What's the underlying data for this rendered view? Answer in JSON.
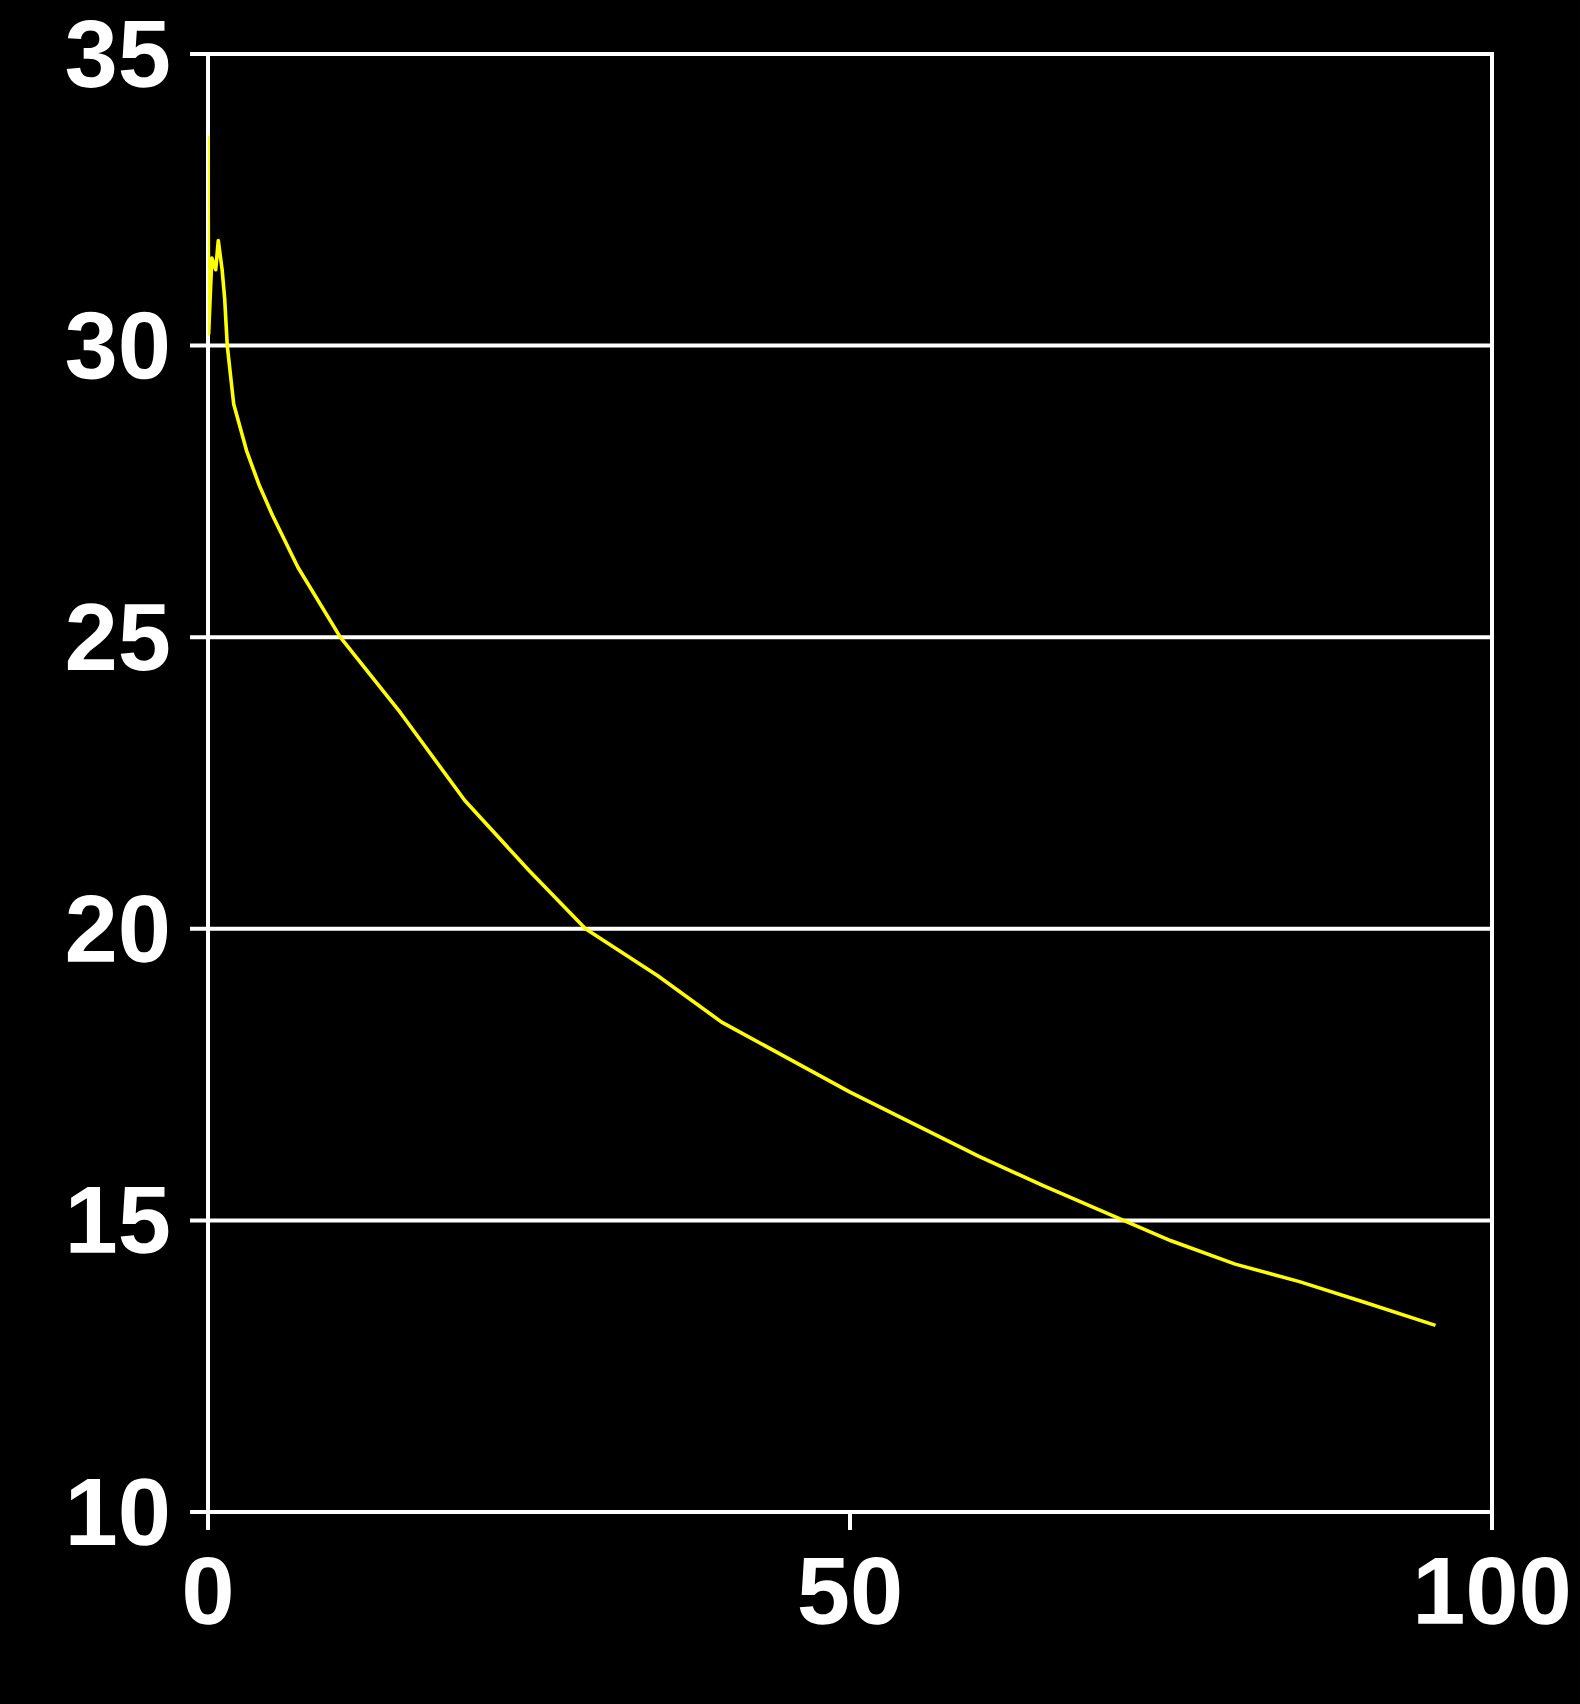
{
  "chart_data": {
    "type": "line",
    "x": [
      0,
      0.05,
      0.3,
      0.6,
      0.8,
      1.1,
      1.3,
      1.5,
      2,
      3,
      4,
      5,
      7,
      10.3,
      15,
      20,
      25,
      29.4,
      35,
      40,
      45,
      50,
      55,
      60,
      65,
      71.3,
      75,
      80,
      85,
      90,
      95.6
    ],
    "series": [
      {
        "color": "#ffff00",
        "values": [
          33.6,
          30.2,
          31.5,
          31.3,
          31.8,
          31.3,
          30.8,
          30.0,
          29.0,
          28.2,
          27.6,
          27.1,
          26.2,
          25.0,
          23.7,
          22.2,
          21.0,
          20.0,
          19.2,
          18.4,
          17.8,
          17.2,
          16.65,
          16.1,
          15.6,
          15.0,
          14.65,
          14.25,
          13.95,
          13.6,
          13.2
        ]
      }
    ],
    "xlim": [
      0,
      100
    ],
    "ylim": [
      10,
      35
    ],
    "xticks": [
      0,
      50,
      100
    ],
    "yticks": [
      10,
      15,
      20,
      25,
      30,
      35
    ],
    "grid": "y",
    "marker": "none",
    "line_style": "solid"
  }
}
